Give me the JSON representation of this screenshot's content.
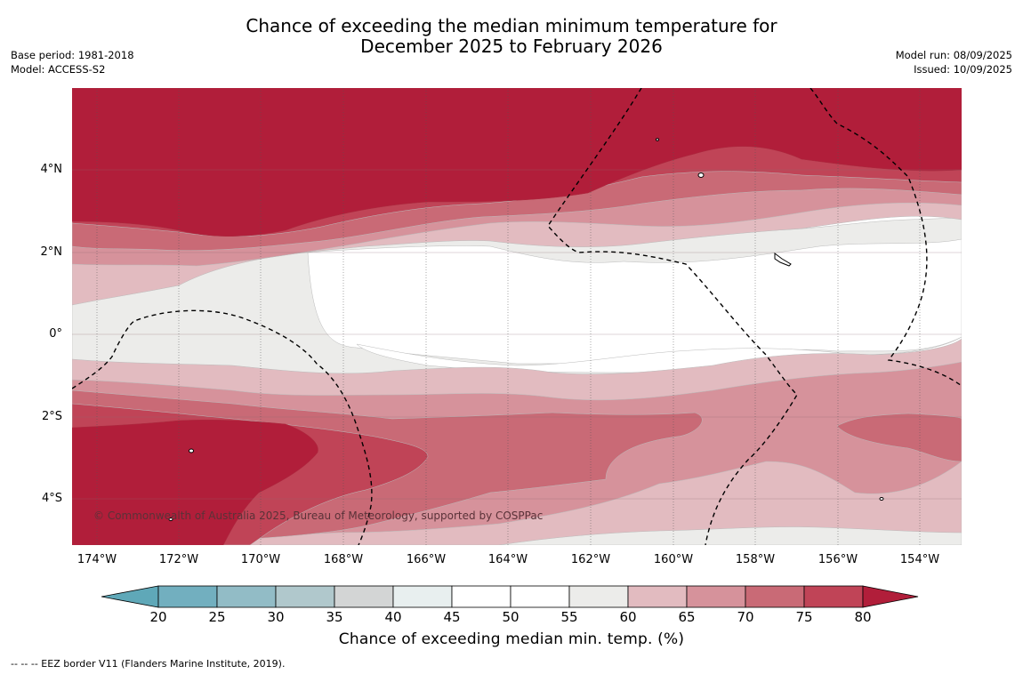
{
  "title": {
    "line1": "Chance of exceeding the median minimum temperature for",
    "line2": "December 2025 to February 2026"
  },
  "meta_left": {
    "base_period": "Base period: 1981-2018",
    "model": "Model: ACCESS-S2"
  },
  "meta_right": {
    "model_run": "Model run: 08/09/2025",
    "issued": "Issued: 10/09/2025"
  },
  "map": {
    "latitude_labels": [
      "4°N",
      "2°N",
      "0°",
      "2°S",
      "4°S"
    ],
    "longitude_labels": [
      "174°W",
      "172°W",
      "170°W",
      "168°W",
      "166°W",
      "164°W",
      "162°W",
      "160°W",
      "158°W",
      "156°W",
      "154°W"
    ],
    "copyright": "© Commonwealth of Australia 2025, Bureau of Meteorology, supported by COSPPac",
    "region_colors": {
      "above_80": "#b11e3a",
      "75_80": "#c04457",
      "70_75": "#c96a76",
      "65_70": "#d6929b",
      "60_65": "#e2bbc0",
      "55_60": "#ececea",
      "45_55": "#ffffff"
    }
  },
  "colorbar": {
    "title": "Chance of exceeding median min. temp. (%)",
    "tick_labels": [
      "20",
      "25",
      "30",
      "35",
      "40",
      "45",
      "50",
      "55",
      "60",
      "65",
      "70",
      "75",
      "80"
    ],
    "colors": [
      "#5fa8b8",
      "#72afbf",
      "#92bcc6",
      "#b0c8cc",
      "#d3d5d5",
      "#e8efef",
      "#ffffff",
      "#ffffff",
      "#ececea",
      "#e2bbc0",
      "#d6929b",
      "#c96a76",
      "#c04457",
      "#b11e3a"
    ]
  },
  "footnote": "--  --  -- EEZ border V11 (Flanders Marine Institute, 2019)."
}
